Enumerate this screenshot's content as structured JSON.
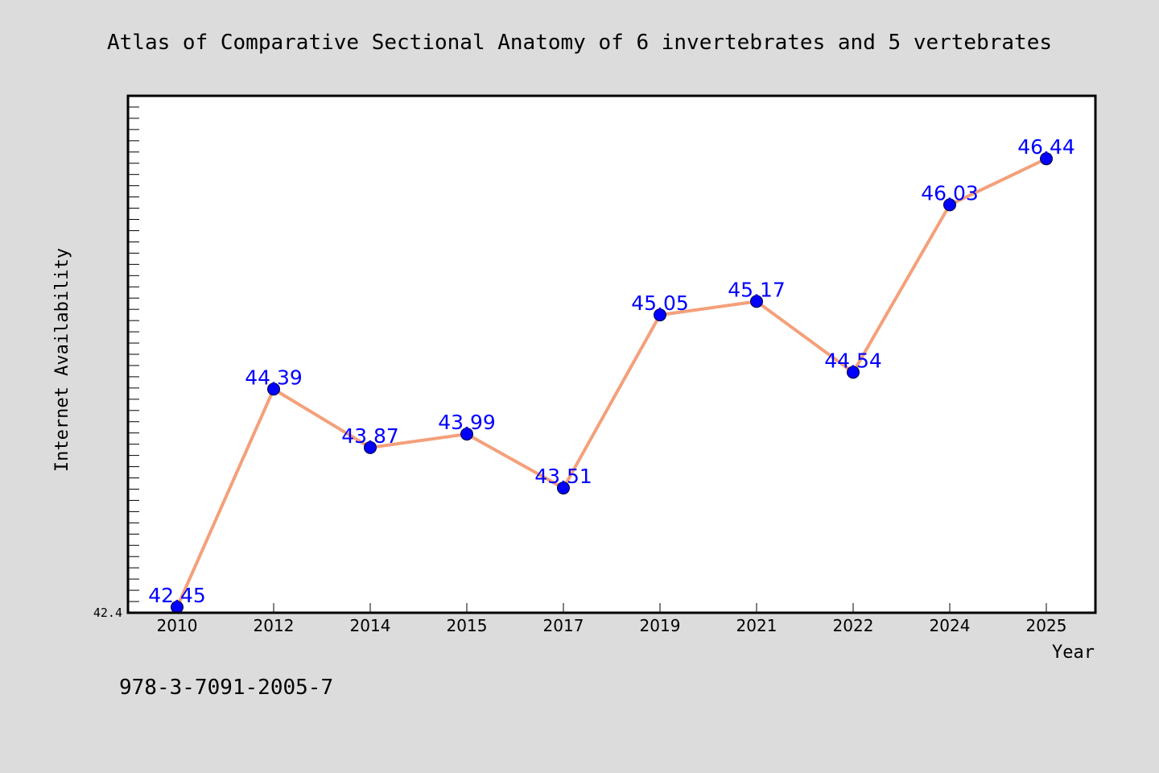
{
  "footer": {
    "code": "978-3-7091-2005-7"
  },
  "colors": {
    "background": "#dcdcdc",
    "plot_area": "#ffffff",
    "line": "#f4a07a",
    "marker": "#0000ff",
    "data_label": "#0000ff"
  },
  "chart_data": {
    "type": "line",
    "title": "Atlas of Comparative Sectional Anatomy of 6 invertebrates and 5 vertebrates",
    "xlabel": "Year",
    "ylabel": "Internet Availability",
    "categories": [
      "2010",
      "2012",
      "2014",
      "2015",
      "2017",
      "2019",
      "2021",
      "2022",
      "2024",
      "2025"
    ],
    "series": [
      {
        "values": [
          42.45,
          44.39,
          43.87,
          43.99,
          43.51,
          45.05,
          45.17,
          44.54,
          46.03,
          46.44
        ],
        "value_labels": [
          "42.45",
          "44.39",
          "43.87",
          "43.99",
          "43.51",
          "45.05",
          "45.17",
          "44.54",
          "46.03",
          "46.44"
        ]
      }
    ],
    "ylim": [
      42.4,
      47.0
    ],
    "yticks_labeled": [
      "42.4"
    ],
    "grid": false,
    "legend": "none"
  }
}
